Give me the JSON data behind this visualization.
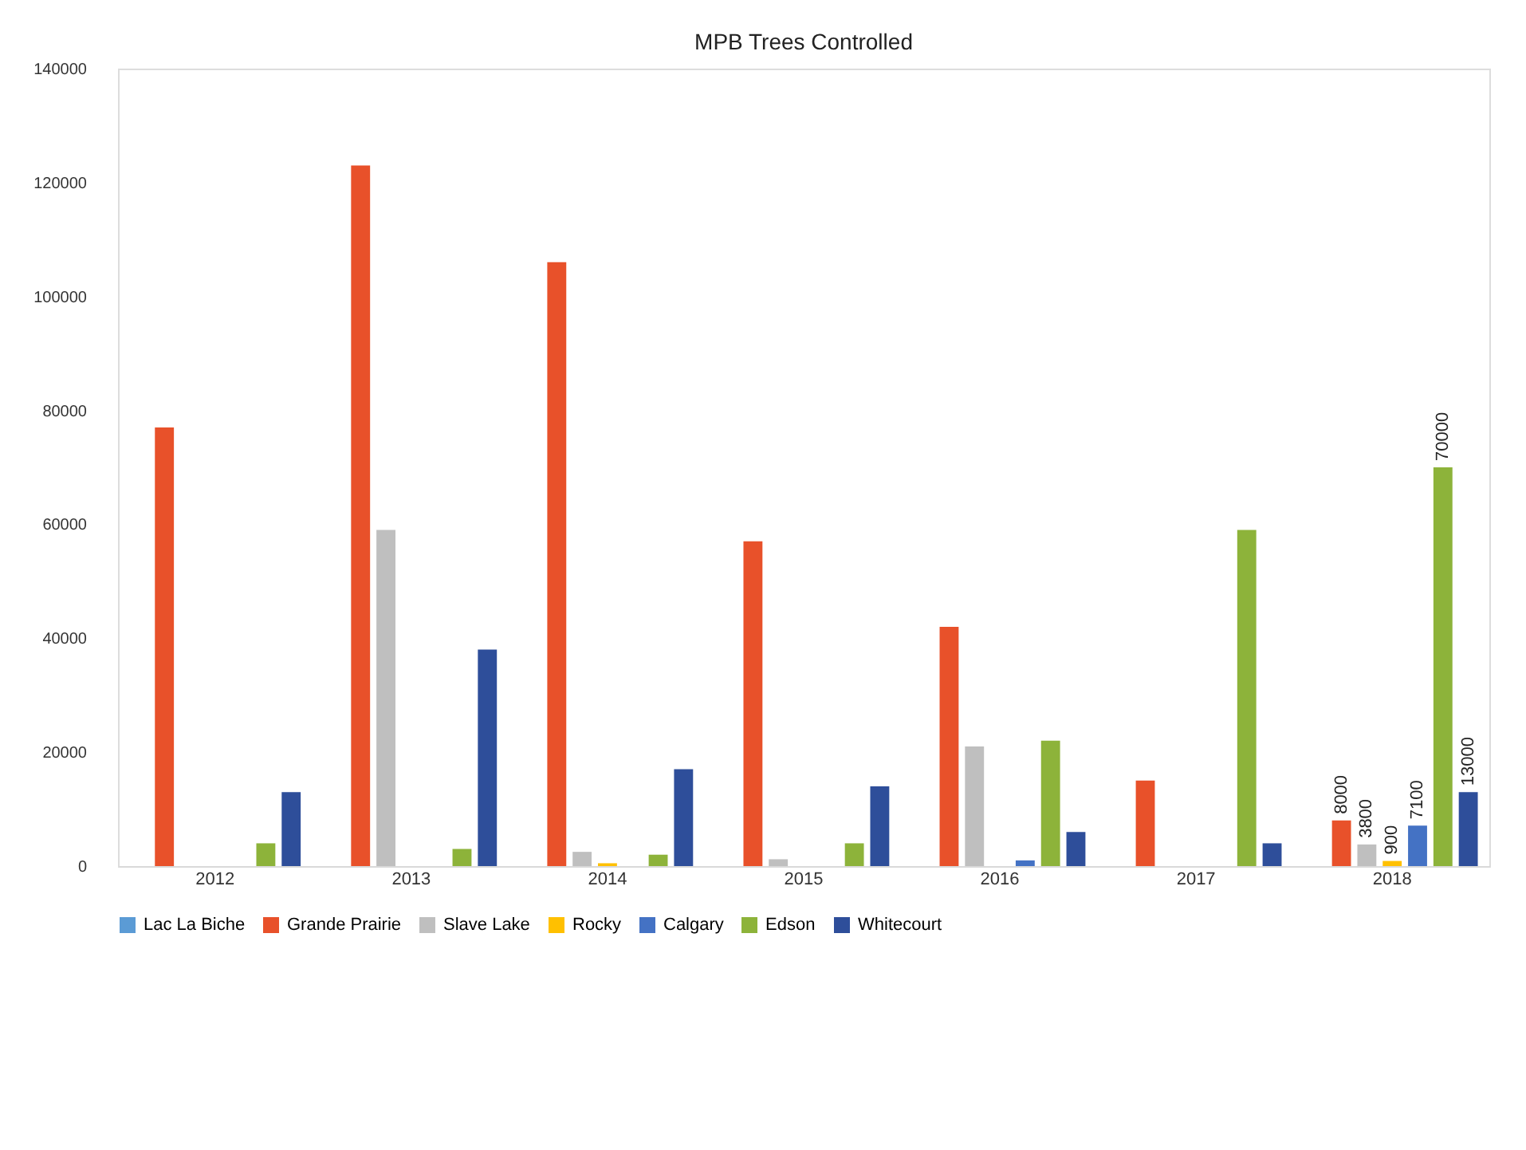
{
  "chart_data": {
    "type": "bar",
    "title": "MPB Trees Controlled",
    "categories": [
      "2012",
      "2013",
      "2014",
      "2015",
      "2016",
      "2017",
      "2018"
    ],
    "series": [
      {
        "name": "Lac La Biche",
        "color": "#5b9bd5",
        "values": [
          null,
          null,
          null,
          null,
          null,
          null,
          null
        ]
      },
      {
        "name": "Grande Prairie",
        "color": "#e8512a",
        "values": [
          77000,
          123000,
          106000,
          57000,
          42000,
          15000,
          8000
        ],
        "value_labels": [
          null,
          null,
          null,
          null,
          null,
          null,
          "8000"
        ]
      },
      {
        "name": "Slave Lake",
        "color": "#bfbfbf",
        "values": [
          null,
          59000,
          2500,
          1200,
          21000,
          null,
          3800
        ],
        "value_labels": [
          null,
          null,
          null,
          null,
          null,
          null,
          "3800"
        ]
      },
      {
        "name": "Rocky",
        "color": "#ffc000",
        "values": [
          null,
          null,
          500,
          null,
          null,
          null,
          900
        ],
        "value_labels": [
          null,
          null,
          null,
          null,
          null,
          null,
          "900"
        ]
      },
      {
        "name": "Calgary",
        "color": "#4472c4",
        "values": [
          null,
          null,
          null,
          null,
          1000,
          null,
          7100
        ],
        "value_labels": [
          null,
          null,
          null,
          null,
          null,
          null,
          "7100"
        ]
      },
      {
        "name": "Edson",
        "color": "#8db33a",
        "values": [
          4000,
          3000,
          2000,
          4000,
          22000,
          59000,
          70000
        ],
        "value_labels": [
          null,
          null,
          null,
          null,
          null,
          null,
          "70000"
        ]
      },
      {
        "name": "Whitecourt",
        "color": "#2e4e9a",
        "values": [
          13000,
          38000,
          17000,
          14000,
          6000,
          4000,
          13000
        ],
        "value_labels": [
          null,
          null,
          null,
          null,
          null,
          null,
          "13000"
        ]
      }
    ],
    "ylim": [
      0,
      140000
    ],
    "yticks": [
      0,
      20000,
      40000,
      60000,
      80000,
      100000,
      120000,
      140000
    ],
    "grid": false,
    "legend": "bottom"
  }
}
